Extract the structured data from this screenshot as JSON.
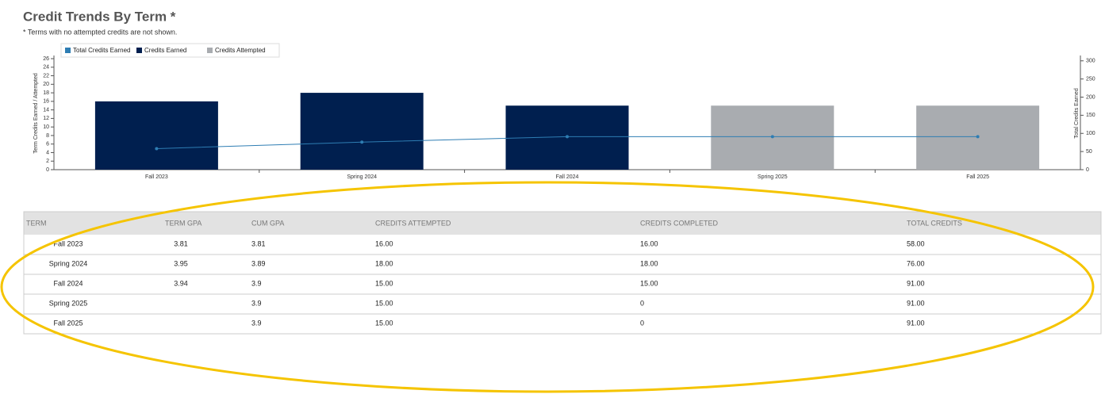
{
  "header": {
    "title": "Credit Trends By Term *",
    "note": "* Terms with no attempted credits are not shown."
  },
  "chart_data": {
    "type": "bar",
    "y_label": "Term Credits Earned / Attempted",
    "y2_label": "Total Credits Earned",
    "categories": [
      "Fall 2023",
      "Spring 2024",
      "Fall 2024",
      "Spring 2025",
      "Fall 2025"
    ],
    "series": [
      {
        "name": "Total Credits Earned",
        "color": "#2e7db3",
        "type": "line",
        "axis": "y2",
        "values": [
          58,
          76,
          91,
          91,
          91
        ]
      },
      {
        "name": "Credits Earned",
        "color": "#001f4f",
        "type": "bar",
        "values": [
          16,
          18,
          15,
          null,
          null
        ]
      },
      {
        "name": "Credits Attempted",
        "color": "#a9acb0",
        "type": "bar",
        "values": [
          null,
          null,
          null,
          15,
          15
        ]
      }
    ],
    "ylim": [
      0,
      26
    ],
    "yticks": [
      0,
      2,
      4,
      6,
      8,
      10,
      12,
      14,
      16,
      18,
      20,
      22,
      24,
      26
    ],
    "y2lim": [
      0,
      306
    ],
    "y2ticks": [
      0,
      50,
      100,
      150,
      200,
      250,
      300
    ]
  },
  "table": {
    "columns": [
      "TERM",
      "TERM GPA",
      "CUM GPA",
      "CREDITS ATTEMPTED",
      "CREDITS COMPLETED",
      "TOTAL CREDITS"
    ],
    "rows": [
      [
        "Fall 2023",
        "3.81",
        "3.81",
        "16.00",
        "16.00",
        "58.00"
      ],
      [
        "Spring 2024",
        "3.95",
        "3.89",
        "18.00",
        "18.00",
        "76.00"
      ],
      [
        "Fall 2024",
        "3.94",
        "3.9",
        "15.00",
        "15.00",
        "91.00"
      ],
      [
        "Spring 2025",
        null,
        "3.9",
        "15.00",
        "0",
        "91.00"
      ],
      [
        "Fall 2025",
        null,
        "3.9",
        "15.00",
        "0",
        "91.00"
      ]
    ]
  }
}
